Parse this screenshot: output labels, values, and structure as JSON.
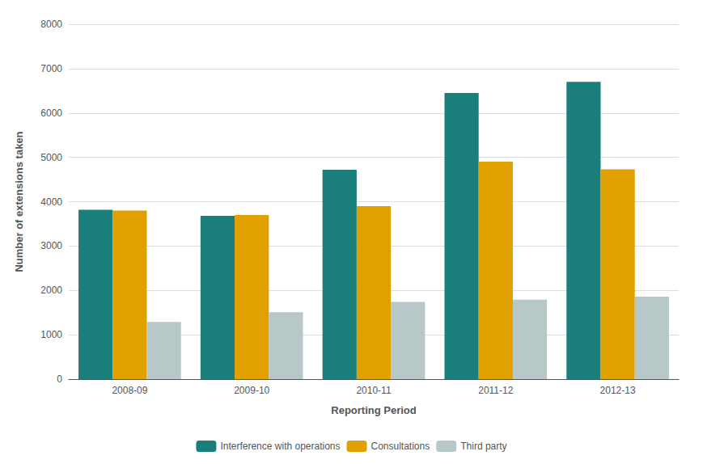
{
  "chart_data": {
    "type": "bar",
    "xlabel": "Reporting Period",
    "ylabel": "Number of extensions taken",
    "categories": [
      "2008-09",
      "2009-10",
      "2010-11",
      "2011-12",
      "2012-13"
    ],
    "series": [
      {
        "name": "Interference with operations",
        "color": "#1a7f7a",
        "values": [
          3820,
          3680,
          4720,
          6450,
          6700
        ]
      },
      {
        "name": "Consultations",
        "color": "#e0a000",
        "values": [
          3800,
          3700,
          3900,
          4900,
          4730
        ]
      },
      {
        "name": "Third party",
        "color": "#b8c8c8",
        "values": [
          1290,
          1510,
          1740,
          1790,
          1860
        ]
      }
    ],
    "ylim": [
      0,
      8000
    ],
    "yticks": [
      0,
      1000,
      2000,
      3000,
      4000,
      5000,
      6000,
      7000,
      8000
    ],
    "grid": true,
    "legend": "bottom"
  }
}
